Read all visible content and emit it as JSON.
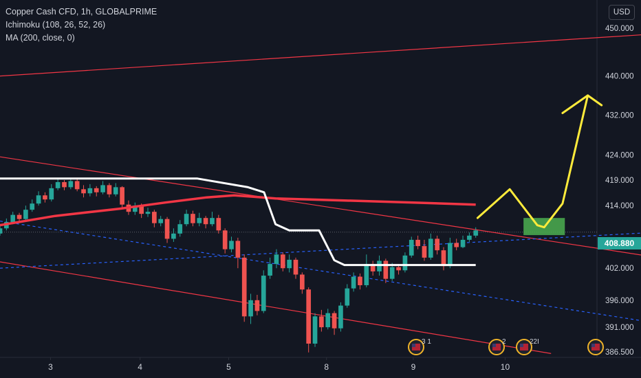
{
  "legend": {
    "symbol": "Copper Cash CFD, 1h, GLOBALPRIME",
    "ichimoku": "Ichimoku (108, 26, 52, 26)",
    "ma": "MA (200, close, 0)"
  },
  "currency_button": "USD",
  "last_price": "408.880",
  "colors": {
    "background": "#131722",
    "up": "#26a69a",
    "down": "#ef5350",
    "ma": "#f23645",
    "ichimoku": "#ffffff",
    "channel": "#f23645",
    "dashed": "#2962ff",
    "drawing": "#ffeb3b",
    "target_box": "#4caf50"
  },
  "event_badges": [
    "3 1",
    "2",
    "22I"
  ],
  "chart_data": {
    "type": "candlestick",
    "title": "Copper Cash CFD, 1h, GLOBALPRIME",
    "y_ticks": [
      "450.000",
      "440.000",
      "432.000",
      "424.000",
      "419.000",
      "414.000",
      "408.880",
      "402.000",
      "396.000",
      "391.000",
      "386.500"
    ],
    "y_tick_values": [
      450,
      440,
      432,
      424,
      419,
      414,
      408.88,
      402,
      396,
      391,
      386.5
    ],
    "x_ticks": [
      "3",
      "4",
      "5",
      "8",
      "9",
      "10"
    ],
    "x_tick_values": [
      1.1,
      3.05,
      4.98,
      7.11,
      9.0,
      11.0
    ],
    "x_range": [
      0,
      13
    ],
    "y_range": [
      385.5,
      456
    ],
    "scale": "log",
    "grid": false,
    "candles": [
      [
        0,
        408.6,
        409.6,
        410.2,
        408.2
      ],
      [
        0.14,
        409.6,
        410.8,
        411.5,
        409.2
      ],
      [
        0.28,
        410.8,
        412.2,
        412.8,
        410.4
      ],
      [
        0.42,
        412.2,
        411.4,
        412.6,
        410.8
      ],
      [
        0.56,
        411.4,
        413.2,
        414.0,
        411.0
      ],
      [
        0.7,
        413.2,
        414.4,
        415.2,
        412.8
      ],
      [
        0.84,
        414.4,
        416.0,
        416.8,
        414.0
      ],
      [
        0.98,
        416.0,
        415.2,
        416.6,
        414.6
      ],
      [
        1.12,
        415.2,
        417.4,
        418.2,
        414.8
      ],
      [
        1.26,
        417.4,
        418.6,
        419.4,
        417.0
      ],
      [
        1.4,
        418.6,
        417.6,
        419.0,
        417.0
      ],
      [
        1.54,
        417.6,
        418.8,
        419.4,
        417.2
      ],
      [
        1.68,
        418.8,
        417.2,
        419.2,
        416.8
      ],
      [
        1.82,
        417.2,
        416.4,
        418.0,
        415.6
      ],
      [
        1.96,
        416.4,
        417.4,
        418.2,
        415.8
      ],
      [
        2.1,
        417.4,
        416.6,
        417.8,
        415.8
      ],
      [
        2.24,
        416.6,
        418.0,
        418.8,
        416.2
      ],
      [
        2.38,
        418.0,
        416.2,
        418.4,
        415.6
      ],
      [
        2.52,
        416.2,
        417.6,
        418.4,
        415.8
      ],
      [
        2.66,
        417.6,
        414.2,
        417.8,
        413.6
      ],
      [
        2.8,
        414.2,
        412.8,
        415.0,
        412.2
      ],
      [
        2.94,
        412.8,
        414.0,
        414.6,
        412.2
      ],
      [
        3.08,
        414.0,
        412.4,
        414.4,
        411.6
      ],
      [
        3.22,
        412.4,
        412.8,
        413.6,
        411.8
      ],
      [
        3.36,
        412.8,
        410.6,
        413.2,
        409.8
      ],
      [
        3.5,
        410.6,
        411.4,
        412.0,
        410.0
      ],
      [
        3.64,
        411.4,
        407.6,
        411.8,
        406.8
      ],
      [
        3.78,
        407.6,
        408.6,
        409.6,
        407.0
      ],
      [
        3.92,
        408.6,
        410.4,
        411.2,
        408.0
      ],
      [
        4.06,
        410.4,
        412.4,
        413.2,
        410.0
      ],
      [
        4.2,
        412.4,
        410.6,
        413.0,
        410.0
      ],
      [
        4.34,
        410.6,
        411.6,
        412.6,
        410.0
      ],
      [
        4.48,
        411.6,
        410.4,
        412.0,
        409.6
      ],
      [
        4.62,
        410.4,
        411.6,
        412.8,
        410.0
      ],
      [
        4.76,
        411.6,
        409.2,
        412.2,
        408.6
      ],
      [
        4.9,
        409.2,
        405.6,
        409.6,
        404.8
      ],
      [
        5.04,
        405.6,
        407.2,
        408.0,
        405.0
      ],
      [
        5.18,
        407.2,
        404.0,
        407.8,
        402.0
      ],
      [
        5.32,
        404.0,
        393.0,
        404.6,
        392.0
      ],
      [
        5.46,
        393.0,
        396.0,
        397.2,
        391.6
      ],
      [
        5.6,
        396.0,
        394.0,
        397.0,
        393.2
      ],
      [
        5.74,
        394.0,
        400.6,
        401.6,
        393.6
      ],
      [
        5.88,
        400.6,
        402.8,
        404.0,
        400.0
      ],
      [
        6.02,
        402.8,
        404.6,
        405.6,
        402.0
      ],
      [
        6.16,
        404.6,
        402.0,
        405.0,
        401.4
      ],
      [
        6.3,
        402.0,
        403.6,
        404.6,
        401.2
      ],
      [
        6.44,
        403.6,
        400.8,
        404.0,
        400.0
      ],
      [
        6.58,
        400.8,
        398.0,
        401.2,
        397.2
      ],
      [
        6.72,
        398.0,
        388.0,
        398.4,
        386.4
      ],
      [
        6.86,
        388.0,
        393.0,
        393.6,
        387.4
      ],
      [
        7.0,
        393.0,
        391.0,
        394.2,
        390.2
      ],
      [
        7.14,
        391.0,
        393.6,
        394.4,
        390.6
      ],
      [
        7.28,
        393.6,
        390.8,
        394.0,
        389.6
      ],
      [
        7.42,
        390.8,
        395.0,
        395.6,
        390.2
      ],
      [
        7.56,
        395.0,
        398.2,
        399.0,
        394.6
      ],
      [
        7.7,
        398.2,
        400.4,
        401.2,
        397.6
      ],
      [
        7.84,
        400.4,
        398.8,
        401.0,
        398.0
      ],
      [
        7.98,
        398.8,
        402.8,
        404.6,
        398.4
      ],
      [
        8.12,
        402.8,
        401.4,
        403.4,
        400.6
      ],
      [
        8.26,
        401.4,
        403.4,
        404.4,
        400.6
      ],
      [
        8.4,
        403.4,
        400.0,
        403.8,
        399.2
      ],
      [
        8.54,
        400.0,
        402.2,
        403.0,
        399.6
      ],
      [
        8.68,
        402.2,
        401.6,
        402.8,
        400.8
      ],
      [
        8.82,
        401.6,
        404.4,
        405.0,
        401.2
      ],
      [
        8.96,
        404.4,
        407.4,
        408.0,
        404.0
      ],
      [
        9.1,
        407.4,
        406.2,
        408.2,
        405.6
      ],
      [
        9.24,
        406.2,
        404.0,
        407.4,
        403.4
      ],
      [
        9.38,
        404.0,
        407.6,
        408.6,
        403.6
      ],
      [
        9.52,
        407.6,
        405.4,
        408.2,
        404.6
      ],
      [
        9.66,
        405.4,
        402.4,
        406.0,
        401.6
      ],
      [
        9.8,
        402.4,
        406.8,
        407.8,
        402.0
      ],
      [
        9.94,
        406.8,
        406.0,
        407.6,
        405.4
      ],
      [
        10.08,
        406.0,
        407.4,
        408.2,
        405.8
      ],
      [
        10.22,
        407.4,
        408.2,
        408.8,
        407.0
      ],
      [
        10.36,
        408.2,
        409.2,
        409.8,
        407.8
      ]
    ],
    "ma_200": [
      [
        0,
        410.2
      ],
      [
        1.2,
        412.0
      ],
      [
        2.6,
        413.4
      ],
      [
        3.6,
        414.6
      ],
      [
        4.5,
        415.6
      ],
      [
        5.1,
        416.0
      ],
      [
        6.0,
        415.4
      ],
      [
        7.5,
        415.0
      ],
      [
        9.0,
        414.6
      ],
      [
        10.36,
        414.2
      ]
    ],
    "ichimoku_line": [
      [
        0,
        419.3
      ],
      [
        3.05,
        419.3
      ],
      [
        4.3,
        419.3
      ],
      [
        5.4,
        417.6
      ],
      [
        5.75,
        416.6
      ],
      [
        6.0,
        410.4
      ],
      [
        6.3,
        409.2
      ],
      [
        6.95,
        409.2
      ],
      [
        7.28,
        403.5
      ],
      [
        7.5,
        402.6
      ],
      [
        10.36,
        402.6
      ]
    ],
    "upper_channel": [
      [
        0,
        440.0
      ],
      [
        17.5,
        450.8
      ]
    ],
    "mid_channel": [
      [
        0,
        423.6
      ],
      [
        17.5,
        399.8
      ]
    ],
    "lower_channel": [
      [
        0,
        403.2
      ],
      [
        12.0,
        386.2
      ]
    ],
    "dashed_line_1": [
      [
        0,
        411.0
      ],
      [
        17.5,
        387.6
      ]
    ],
    "dashed_line_2": [
      [
        0,
        402.0
      ],
      [
        17.5,
        410.4
      ]
    ],
    "yellow_path": [
      [
        10.4,
        411.6
      ],
      [
        11.1,
        417.2
      ],
      [
        11.7,
        410.2
      ],
      [
        11.85,
        409.8
      ],
      [
        12.25,
        414.4
      ],
      [
        12.8,
        436.0
      ]
    ],
    "arrow_head_left": [
      12.25,
      432.4
    ],
    "arrow_head_right": [
      13.1,
      434.0
    ],
    "target_zone": {
      "x": [
        11.4,
        12.3
      ],
      "y": [
        408.3,
        411.6
      ]
    }
  }
}
